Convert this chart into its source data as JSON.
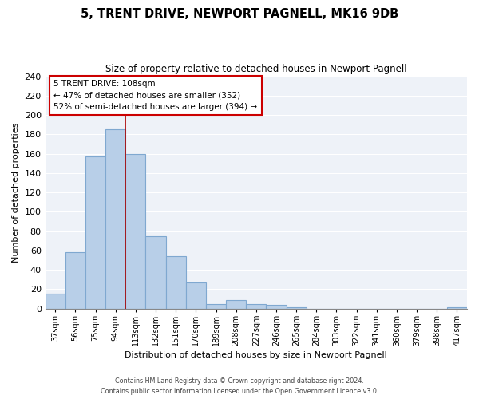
{
  "title": "5, TRENT DRIVE, NEWPORT PAGNELL, MK16 9DB",
  "subtitle": "Size of property relative to detached houses in Newport Pagnell",
  "xlabel": "Distribution of detached houses by size in Newport Pagnell",
  "ylabel": "Number of detached properties",
  "bar_labels": [
    "37sqm",
    "56sqm",
    "75sqm",
    "94sqm",
    "113sqm",
    "132sqm",
    "151sqm",
    "170sqm",
    "189sqm",
    "208sqm",
    "227sqm",
    "246sqm",
    "265sqm",
    "284sqm",
    "303sqm",
    "322sqm",
    "341sqm",
    "360sqm",
    "379sqm",
    "398sqm",
    "417sqm"
  ],
  "bar_values": [
    15,
    58,
    157,
    185,
    160,
    75,
    54,
    27,
    5,
    9,
    5,
    4,
    1,
    0,
    0,
    0,
    0,
    0,
    0,
    0,
    1
  ],
  "bar_color": "#b8cfe8",
  "bar_edge_color": "#7fa8d0",
  "vline_x_index": 4,
  "vline_color": "#aa0000",
  "ylim": [
    0,
    240
  ],
  "yticks": [
    0,
    20,
    40,
    60,
    80,
    100,
    120,
    140,
    160,
    180,
    200,
    220,
    240
  ],
  "annotation_title": "5 TRENT DRIVE: 108sqm",
  "annotation_line1": "← 47% of detached houses are smaller (352)",
  "annotation_line2": "52% of semi-detached houses are larger (394) →",
  "annotation_box_color": "#ffffff",
  "annotation_box_edge": "#cc0000",
  "footer_line1": "Contains HM Land Registry data © Crown copyright and database right 2024.",
  "footer_line2": "Contains public sector information licensed under the Open Government Licence v3.0.",
  "background_color": "#ffffff",
  "plot_bg_color": "#eef2f8",
  "grid_color": "#ffffff"
}
